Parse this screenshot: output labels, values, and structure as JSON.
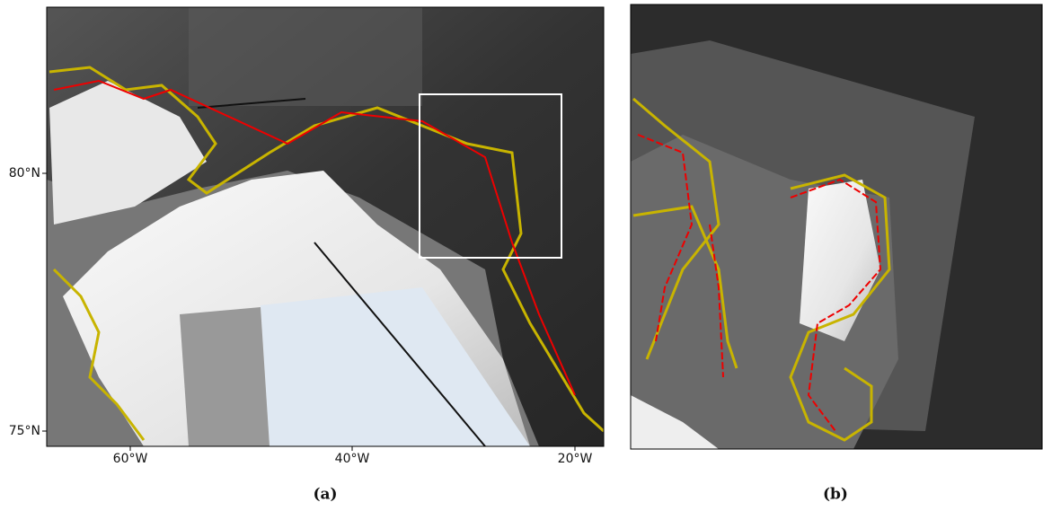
{
  "panels": [
    {
      "caption": "(a)",
      "x_labels": [
        "60°W",
        "40°W",
        "20°W"
      ],
      "y_labels": [
        "80°N",
        "75°N"
      ]
    },
    {
      "caption": "(b)"
    }
  ]
}
